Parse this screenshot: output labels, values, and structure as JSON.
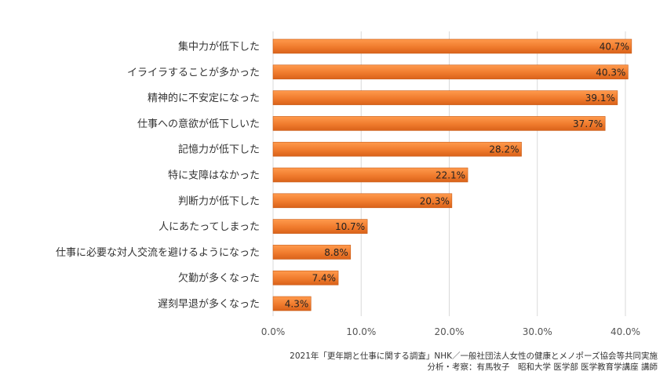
{
  "chart_data": {
    "type": "bar",
    "orientation": "horizontal",
    "categories": [
      "集中力が低下した",
      "イライラすることが多かった",
      "精神的に不安定になった",
      "仕事への意欲が低下しいた",
      "記憶力が低下した",
      "特に支障はなかった",
      "判断力が低下した",
      "人にあたってしまった",
      "仕事に必要な対人交流を避けるようになった",
      "欠勤が多くなった",
      "遅刻早退が多くなった"
    ],
    "values": [
      40.7,
      40.3,
      39.1,
      37.7,
      28.2,
      22.1,
      20.3,
      10.7,
      8.8,
      7.4,
      4.3
    ],
    "value_labels": [
      "40.7%",
      "40.3%",
      "39.1%",
      "37.7%",
      "28.2%",
      "22.1%",
      "20.3%",
      "10.7%",
      "8.8%",
      "7.4%",
      "4.3%"
    ],
    "xlim": [
      0,
      40
    ],
    "xticks": [
      0,
      10,
      20,
      30,
      40
    ],
    "xtick_labels": [
      "0.0%",
      "10.0%",
      "20.0%",
      "30.0%",
      "40.0%"
    ],
    "grid": true,
    "bar_color": "#F07B2D",
    "title": "",
    "xlabel": "",
    "ylabel": ""
  },
  "footer": {
    "line1": "2021年「更年期と仕事に関する調査」NHK／一般社団法人女性の健康とメノポーズ協会等共同実施",
    "line2": "分析・考察：有馬牧子　昭和大学 医学部 医学教育学講座 講師"
  }
}
